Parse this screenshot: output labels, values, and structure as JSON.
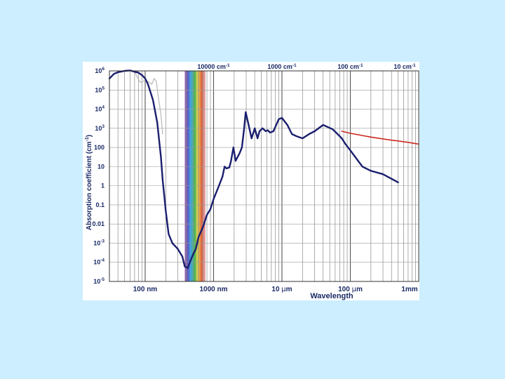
{
  "colors": {
    "background": "#cceeff",
    "water_curve": "#1a1f6e",
    "ice_curve": "#cc2a22",
    "secondary_curve": "#b8b8b8",
    "visible_band": [
      "#7a3fa0",
      "#3d4fc0",
      "#2e8fd6",
      "#25a89a",
      "#3fa83a",
      "#c8c43a",
      "#e0902a",
      "#d8502a",
      "#e08080"
    ]
  },
  "chart_data": {
    "type": "line",
    "title": "",
    "xlabel": "Wavelength",
    "ylabel": "Absorption coefficient (cm",
    "ylabel_sup": "-1",
    "ylabel_close": ")",
    "x_scale": "log",
    "y_scale": "log",
    "x_unit": "m",
    "xlim": [
      3e-08,
      0.001
    ],
    "ylim": [
      1e-05,
      1000000.0
    ],
    "grid": true,
    "x_ticks": [
      {
        "value": 1e-07,
        "label": "100 nm"
      },
      {
        "value": 1e-06,
        "label": "1000 nm"
      },
      {
        "value": 1e-05,
        "label": "10 ",
        "label_mu": "μ",
        "label_tail": "m"
      },
      {
        "value": 0.0001,
        "label": "100 ",
        "label_mu": "μ",
        "label_tail": "m"
      },
      {
        "value": 0.001,
        "label": "1mm"
      }
    ],
    "top_ticks": [
      {
        "value": 1e-06,
        "label": "10000 cm",
        "sup": "-1"
      },
      {
        "value": 1e-05,
        "label": "1000 cm",
        "sup": "-1"
      },
      {
        "value": 0.0001,
        "label": "100 cm",
        "sup": "-1"
      },
      {
        "value": 0.001,
        "label": "10 cm",
        "sup": "-1"
      }
    ],
    "y_ticks": [
      {
        "value": 1000000.0,
        "base": "10",
        "sup": "6"
      },
      {
        "value": 100000.0,
        "base": "10",
        "sup": "5"
      },
      {
        "value": 10000.0,
        "base": "10",
        "sup": "4"
      },
      {
        "value": 1000.0,
        "base": "10",
        "sup": "3"
      },
      {
        "value": 100,
        "base": "100",
        "sup": ""
      },
      {
        "value": 10,
        "base": "10",
        "sup": ""
      },
      {
        "value": 1,
        "base": "1",
        "sup": ""
      },
      {
        "value": 0.1,
        "base": "0.1",
        "sup": ""
      },
      {
        "value": 0.01,
        "base": "0.01",
        "sup": ""
      },
      {
        "value": 0.001,
        "base": "10",
        "sup": "-3"
      },
      {
        "value": 0.0001,
        "base": "10",
        "sup": "-4"
      },
      {
        "value": 1e-05,
        "base": "10",
        "sup": "-5"
      }
    ],
    "visible_band": [
      3.8e-07,
      7.5e-07
    ],
    "series": [
      {
        "id": "water",
        "x": [
          3e-08,
          3.5e-08,
          4e-08,
          5e-08,
          6e-08,
          7e-08,
          8e-08,
          9e-08,
          1e-07,
          1.1e-07,
          1.3e-07,
          1.5e-07,
          1.7e-07,
          1.8e-07,
          1.9e-07,
          2e-07,
          2.2e-07,
          2.5e-07,
          3e-07,
          3.5e-07,
          3.8e-07,
          4.2e-07,
          4.5e-07,
          5e-07,
          5.5e-07,
          6e-07,
          7e-07,
          8e-07,
          9e-07,
          1e-06,
          1.2e-06,
          1.35e-06,
          1.45e-06,
          1.55e-06,
          1.7e-06,
          1.8e-06,
          1.95e-06,
          2.1e-06,
          2.4e-06,
          2.6e-06,
          2.8e-06,
          2.95e-06,
          3.2e-06,
          3.6e-06,
          4e-06,
          4.4e-06,
          4.7e-06,
          5.2e-06,
          5.8e-06,
          6.2e-06,
          6.7e-06,
          7.5e-06,
          9e-06,
          1e-05,
          1.2e-05,
          1.4e-05,
          1.6e-05,
          2e-05,
          2.5e-05,
          3e-05,
          4e-05,
          4.6e-05,
          5.5e-05,
          6.5e-05,
          7.5e-05,
          8.5e-05,
          0.0001,
          0.00015,
          0.0002,
          0.0003,
          0.0005
        ],
        "y": [
          400000.0,
          700000.0,
          850000.0,
          1000000.0,
          1050000.0,
          900000.0,
          800000.0,
          600000.0,
          400000.0,
          200000.0,
          30000.0,
          2000.0,
          30.0,
          2.0,
          0.3,
          0.05,
          0.003,
          0.001,
          0.0005,
          0.0002,
          6e-05,
          5e-05,
          0.0001,
          0.00025,
          0.0005,
          0.002,
          0.007,
          0.03,
          0.06,
          0.2,
          1.0,
          3.0,
          10,
          8,
          9,
          20,
          100,
          20,
          50,
          100,
          1000.0,
          7000.0,
          2000.0,
          300,
          1000.0,
          300,
          700,
          1000.0,
          700,
          800,
          600,
          700,
          3000.0,
          3500.0,
          1500.0,
          500,
          400,
          300,
          500,
          700,
          1500.0,
          1200.0,
          900,
          500,
          300,
          150,
          70,
          10,
          6,
          4,
          1.5
        ]
      },
      {
        "id": "ice",
        "x": [
          7.5e-05,
          0.0001,
          0.00015,
          0.0002,
          0.0003,
          0.0004,
          0.0005,
          0.0006,
          0.0007,
          0.0008,
          0.001
        ],
        "y": [
          700,
          550,
          420,
          350,
          280,
          240,
          220,
          200,
          185,
          170,
          150
        ]
      },
      {
        "id": "secondary",
        "x": [
          5e-08,
          6e-08,
          7e-08,
          8e-08,
          8.5e-08,
          9.5e-08,
          1.1e-07,
          1.25e-07,
          1.35e-07,
          1.45e-07,
          1.55e-07,
          1.7e-07,
          1.8e-07
        ],
        "y": [
          1050000.0,
          1100000.0,
          900000.0,
          350000.0,
          250000.0,
          300000.0,
          280000.0,
          200000.0,
          400000.0,
          300000.0,
          50000.0,
          5000.0,
          500.0
        ]
      }
    ]
  }
}
